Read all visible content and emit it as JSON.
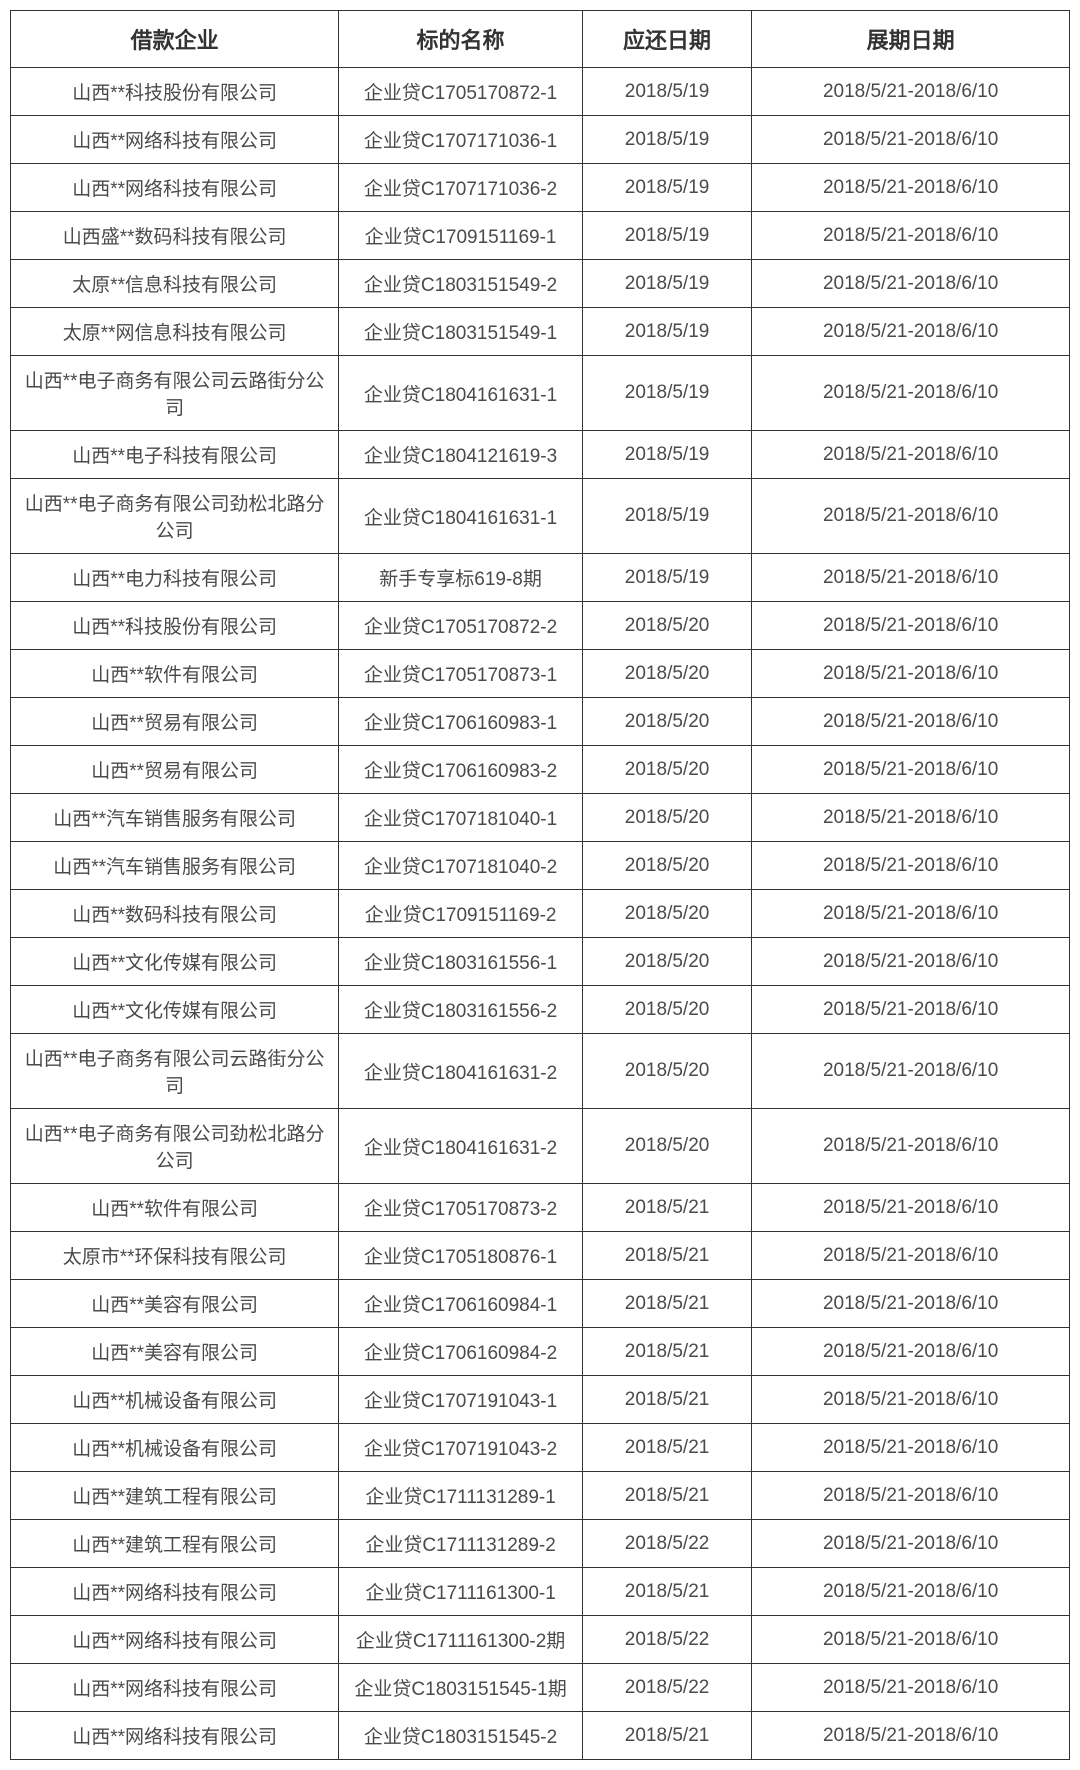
{
  "table": {
    "type": "table",
    "columns": [
      "借款企业",
      "标的名称",
      "应还日期",
      "展期日期"
    ],
    "column_widths_pct": [
      31,
      23,
      16,
      30
    ],
    "header_fontsize_pt": 16,
    "cell_fontsize_pt": 14,
    "border_color": "#333333",
    "text_color": "#4a4a4a",
    "header_text_color": "#333333",
    "background_color": "#ffffff",
    "alignment": "center",
    "rows": [
      [
        "山西**科技股份有限公司",
        "企业贷C1705170872-1",
        "2018/5/19",
        "2018/5/21-2018/6/10"
      ],
      [
        "山西**网络科技有限公司",
        "企业贷C1707171036-1",
        "2018/5/19",
        "2018/5/21-2018/6/10"
      ],
      [
        "山西**网络科技有限公司",
        "企业贷C1707171036-2",
        "2018/5/19",
        "2018/5/21-2018/6/10"
      ],
      [
        "山西盛**数码科技有限公司",
        "企业贷C1709151169-1",
        "2018/5/19",
        "2018/5/21-2018/6/10"
      ],
      [
        "太原**信息科技有限公司",
        "企业贷C1803151549-2",
        "2018/5/19",
        "2018/5/21-2018/6/10"
      ],
      [
        "太原**网信息科技有限公司",
        "企业贷C1803151549-1",
        "2018/5/19",
        "2018/5/21-2018/6/10"
      ],
      [
        "山西**电子商务有限公司云路街分公司",
        "企业贷C1804161631-1",
        "2018/5/19",
        "2018/5/21-2018/6/10"
      ],
      [
        "山西**电子科技有限公司",
        "企业贷C1804121619-3",
        "2018/5/19",
        "2018/5/21-2018/6/10"
      ],
      [
        "山西**电子商务有限公司劲松北路分公司",
        "企业贷C1804161631-1",
        "2018/5/19",
        "2018/5/21-2018/6/10"
      ],
      [
        "山西**电力科技有限公司",
        "新手专享标619-8期",
        "2018/5/19",
        "2018/5/21-2018/6/10"
      ],
      [
        "山西**科技股份有限公司",
        "企业贷C1705170872-2",
        "2018/5/20",
        "2018/5/21-2018/6/10"
      ],
      [
        "山西**软件有限公司",
        "企业贷C1705170873-1",
        "2018/5/20",
        "2018/5/21-2018/6/10"
      ],
      [
        "山西**贸易有限公司",
        "企业贷C1706160983-1",
        "2018/5/20",
        "2018/5/21-2018/6/10"
      ],
      [
        "山西**贸易有限公司",
        "企业贷C1706160983-2",
        "2018/5/20",
        "2018/5/21-2018/6/10"
      ],
      [
        "山西**汽车销售服务有限公司",
        "企业贷C1707181040-1",
        "2018/5/20",
        "2018/5/21-2018/6/10"
      ],
      [
        "山西**汽车销售服务有限公司",
        "企业贷C1707181040-2",
        "2018/5/20",
        "2018/5/21-2018/6/10"
      ],
      [
        "山西**数码科技有限公司",
        "企业贷C1709151169-2",
        "2018/5/20",
        "2018/5/21-2018/6/10"
      ],
      [
        "山西**文化传媒有限公司",
        "企业贷C1803161556-1",
        "2018/5/20",
        "2018/5/21-2018/6/10"
      ],
      [
        "山西**文化传媒有限公司",
        "企业贷C1803161556-2",
        "2018/5/20",
        "2018/5/21-2018/6/10"
      ],
      [
        "山西**电子商务有限公司云路街分公司",
        "企业贷C1804161631-2",
        "2018/5/20",
        "2018/5/21-2018/6/10"
      ],
      [
        "山西**电子商务有限公司劲松北路分公司",
        "企业贷C1804161631-2",
        "2018/5/20",
        "2018/5/21-2018/6/10"
      ],
      [
        "山西**软件有限公司",
        "企业贷C1705170873-2",
        "2018/5/21",
        "2018/5/21-2018/6/10"
      ],
      [
        "太原市**环保科技有限公司",
        "企业贷C1705180876-1",
        "2018/5/21",
        "2018/5/21-2018/6/10"
      ],
      [
        "山西**美容有限公司",
        "企业贷C1706160984-1",
        "2018/5/21",
        "2018/5/21-2018/6/10"
      ],
      [
        "山西**美容有限公司",
        "企业贷C1706160984-2",
        "2018/5/21",
        "2018/5/21-2018/6/10"
      ],
      [
        "山西**机械设备有限公司",
        "企业贷C1707191043-1",
        "2018/5/21",
        "2018/5/21-2018/6/10"
      ],
      [
        "山西**机械设备有限公司",
        "企业贷C1707191043-2",
        "2018/5/21",
        "2018/5/21-2018/6/10"
      ],
      [
        "山西**建筑工程有限公司",
        "企业贷C1711131289-1",
        "2018/5/21",
        "2018/5/21-2018/6/10"
      ],
      [
        "山西**建筑工程有限公司",
        "企业贷C1711131289-2",
        "2018/5/22",
        "2018/5/21-2018/6/10"
      ],
      [
        "山西**网络科技有限公司",
        "企业贷C1711161300-1",
        "2018/5/21",
        "2018/5/21-2018/6/10"
      ],
      [
        "山西**网络科技有限公司",
        "企业贷C1711161300-2期",
        "2018/5/22",
        "2018/5/21-2018/6/10"
      ],
      [
        "山西**网络科技有限公司",
        "企业贷C1803151545-1期",
        "2018/5/22",
        "2018/5/21-2018/6/10"
      ],
      [
        "山西**网络科技有限公司",
        "企业贷C1803151545-2",
        "2018/5/21",
        "2018/5/21-2018/6/10"
      ]
    ]
  }
}
